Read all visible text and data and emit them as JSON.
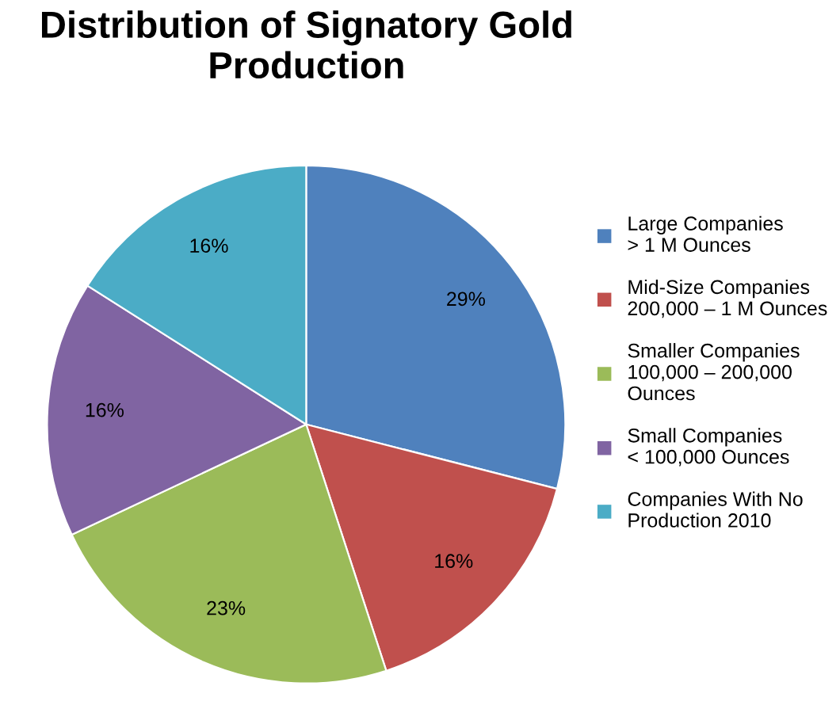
{
  "chart_data": {
    "type": "pie",
    "title": "Distribution of Signatory Gold\nProduction",
    "categories": [
      "Large Companies\n> 1 M Ounces",
      "Mid-Size Companies\n200,000 – 1 M Ounces",
      "Smaller Companies\n100,000 – 200,000\nOunces",
      "Small Companies\n< 100,000 Ounces",
      "Companies With No\nProduction 2010"
    ],
    "values": [
      29,
      16,
      23,
      16,
      16
    ],
    "colors": [
      "#4f81bd",
      "#c0504d",
      "#9bbb59",
      "#8064a2",
      "#4bacc6"
    ],
    "value_labels": [
      "29%",
      "16%",
      "23%",
      "16%",
      "16%"
    ],
    "legend": "right"
  }
}
